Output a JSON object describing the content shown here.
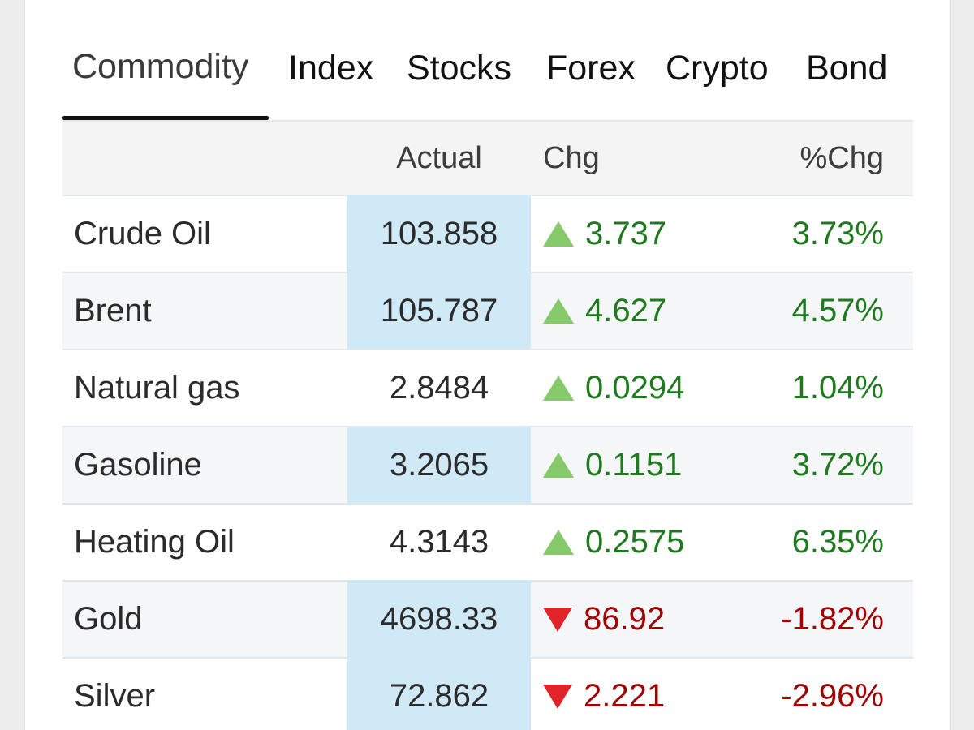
{
  "tabs": [
    {
      "label": "Commodity",
      "active": true
    },
    {
      "label": "Index",
      "active": false
    },
    {
      "label": "Stocks",
      "active": false
    },
    {
      "label": "Forex",
      "active": false
    },
    {
      "label": "Crypto",
      "active": false
    },
    {
      "label": "Bond",
      "active": false
    }
  ],
  "table": {
    "headers": {
      "name": "",
      "actual": "Actual",
      "chg": "Chg",
      "pct": "%Chg"
    },
    "rows": [
      {
        "name": "Crude Oil",
        "actual": "103.858",
        "chg": "3.737",
        "pct": "3.73%",
        "direction": "up",
        "highlighted": true
      },
      {
        "name": "Brent",
        "actual": "105.787",
        "chg": "4.627",
        "pct": "4.57%",
        "direction": "up",
        "highlighted": true
      },
      {
        "name": "Natural gas",
        "actual": "2.8484",
        "chg": "0.0294",
        "pct": "1.04%",
        "direction": "up",
        "highlighted": false
      },
      {
        "name": "Gasoline",
        "actual": "3.2065",
        "chg": "0.1151",
        "pct": "3.72%",
        "direction": "up",
        "highlighted": true
      },
      {
        "name": "Heating Oil",
        "actual": "4.3143",
        "chg": "0.2575",
        "pct": "6.35%",
        "direction": "up",
        "highlighted": false
      },
      {
        "name": "Gold",
        "actual": "4698.33",
        "chg": "86.92",
        "pct": "-1.82%",
        "direction": "down",
        "highlighted": true
      },
      {
        "name": "Silver",
        "actual": "72.862",
        "chg": "2.221",
        "pct": "-2.96%",
        "direction": "down",
        "highlighted": true
      }
    ]
  },
  "colors": {
    "up_text": "#1f7a1f",
    "up_arrow": "#85c96a",
    "down_text": "#a00000",
    "down_arrow": "#e0242a",
    "actual_highlight": "#d0e9f7"
  },
  "icons": {
    "up": "triangle-up-icon",
    "down": "triangle-down-icon"
  }
}
